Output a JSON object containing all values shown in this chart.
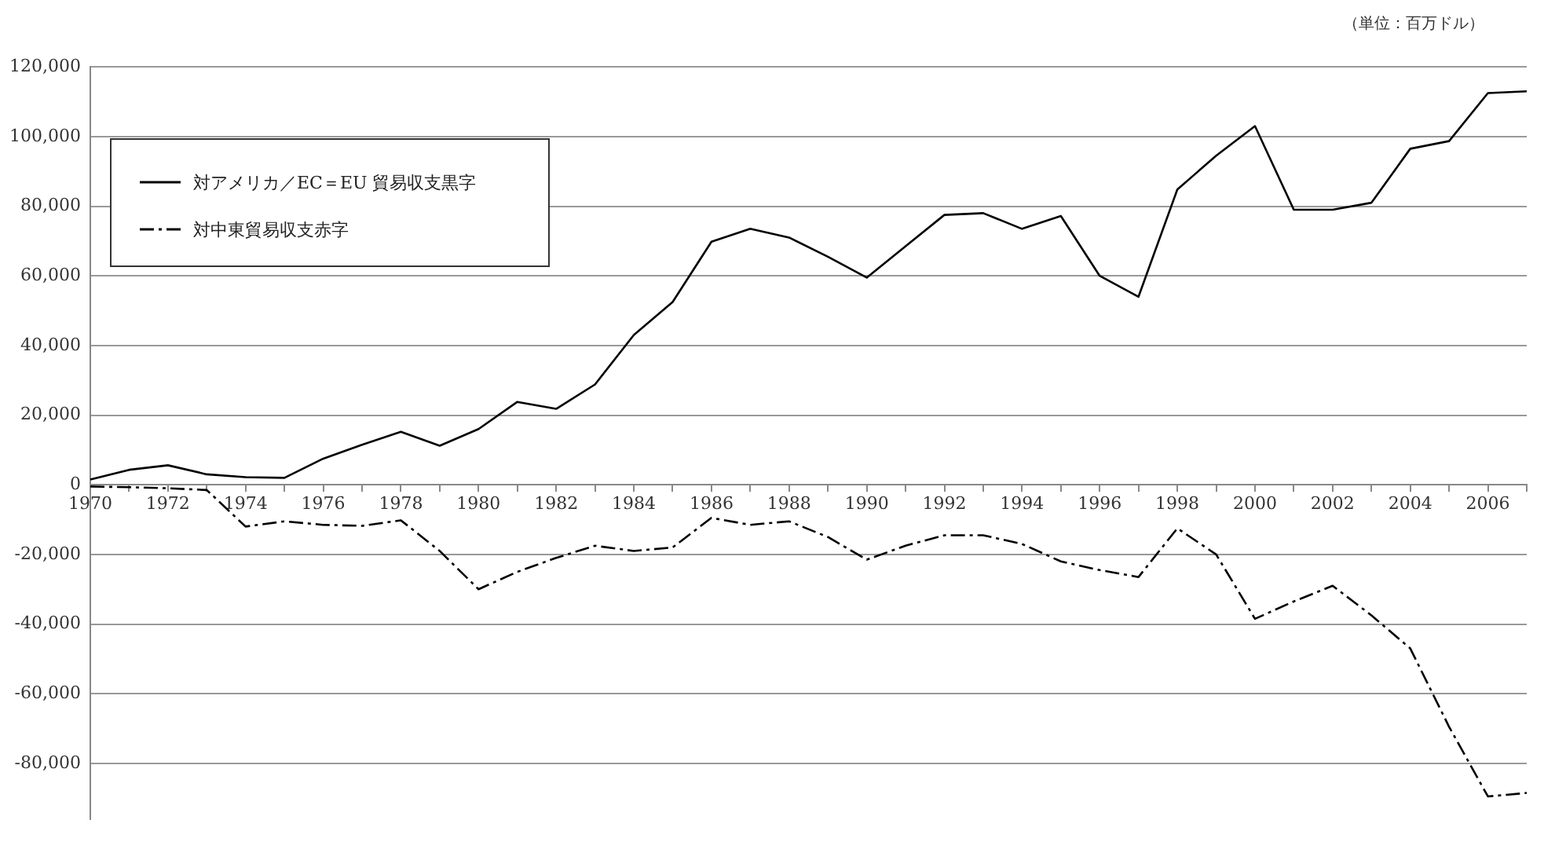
{
  "chart_data": {
    "type": "line",
    "categories": [
      "1970",
      null,
      "1972",
      null,
      "1974",
      null,
      "1976",
      null,
      "1978",
      null,
      "1980",
      null,
      "1982",
      null,
      "1984",
      null,
      "1986",
      null,
      "1988",
      null,
      "1990",
      null,
      "1992",
      null,
      "1994",
      null,
      "1996",
      null,
      "1998",
      null,
      "2000",
      null,
      "2002",
      null,
      "2004",
      null,
      "2006",
      null
    ],
    "series": [
      {
        "name": "対アメリカ／EC＝EU 貿易収支黒字",
        "color": "#000000",
        "line_style": "solid",
        "values": [
          1500,
          4300,
          5600,
          3000,
          2200,
          2000,
          7500,
          11500,
          15200,
          11200,
          16000,
          23800,
          21800,
          28800,
          43000,
          52500,
          69800,
          73500,
          71000,
          65500,
          59500,
          68500,
          77500,
          78000,
          73500,
          77200,
          60000,
          54000,
          84800,
          94500,
          103000,
          79000,
          79000,
          81000,
          96500,
          98700,
          112500,
          113000
        ]
      },
      {
        "name": "対中東貿易収支赤字",
        "color": "#000000",
        "line_style": "dashed",
        "values": [
          -500,
          -700,
          -1000,
          -1500,
          -12000,
          -10500,
          -11500,
          -11800,
          -10200,
          -19000,
          -30000,
          -25000,
          -21000,
          -17500,
          -19000,
          -18000,
          -9500,
          -11500,
          -10500,
          -15000,
          -21500,
          -17500,
          -14500,
          -14500,
          -17000,
          -22000,
          -24500,
          -26500,
          -12500,
          -20000,
          -38500,
          -33500,
          -29000,
          -37500,
          -47000,
          -69500,
          -89500,
          -88500
        ]
      }
    ],
    "ylim": [
      -96000,
      120000
    ],
    "yticks": [
      {
        "value": -80000,
        "label": "-80,000"
      },
      {
        "value": -60000,
        "label": "-60,000"
      },
      {
        "value": -40000,
        "label": "-40,000"
      },
      {
        "value": -20000,
        "label": "-20,000"
      },
      {
        "value": 0,
        "label": "0"
      },
      {
        "value": 20000,
        "label": "20,000"
      },
      {
        "value": 40000,
        "label": "40,000"
      },
      {
        "value": 60000,
        "label": "60,000"
      },
      {
        "value": 80000,
        "label": "80,000"
      },
      {
        "value": 100000,
        "label": "100,000"
      },
      {
        "value": 120000,
        "label": "120,000"
      }
    ],
    "grid": "y",
    "legend": "top left",
    "marker": "none",
    "annotations": [
      "（単位：百万ドル）"
    ]
  }
}
